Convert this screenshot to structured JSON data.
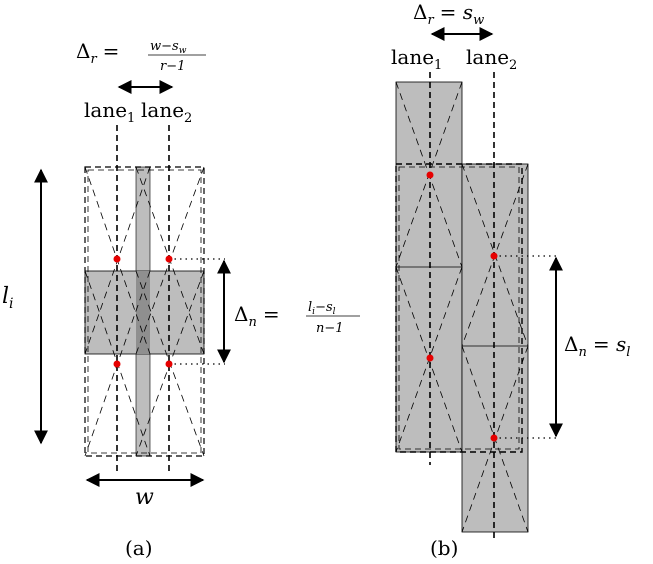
{
  "panel_a": {
    "caption": "(a)",
    "delta_r_lhs": "Δ",
    "delta_r_sub": "r",
    "delta_r_eq": "=",
    "delta_r_num": "w−s",
    "delta_r_num_sub": "w",
    "delta_r_den": "r−1",
    "lane1": "lane",
    "lane1_sub": "1",
    "lane2": "lane",
    "lane2_sub": "2",
    "li_label": "l",
    "li_sub": "i",
    "w_label": "w",
    "delta_n_lhs": "Δ",
    "delta_n_sub": "n",
    "delta_n_eq": "=",
    "delta_n_num": "l",
    "delta_n_num_sub": "i",
    "delta_n_num_rest": "−s",
    "delta_n_num_sub2": "l",
    "delta_n_den": "n−1"
  },
  "panel_b": {
    "caption": "(b)",
    "delta_r_lhs": "Δ",
    "delta_r_sub": "r",
    "delta_r_rhs": "= s",
    "delta_r_rhs_sub": "w",
    "lane1": "lane",
    "lane1_sub": "1",
    "lane2": "lane",
    "lane2_sub": "2",
    "delta_n_lhs": "Δ",
    "delta_n_sub": "n",
    "delta_n_rhs": "= s",
    "delta_n_rhs_sub": "l"
  },
  "colors": {
    "fill_gray": "#bdbdbd",
    "fill_dark": "#8f8f8f",
    "point_red": "#e60000",
    "stroke": "#000000"
  }
}
